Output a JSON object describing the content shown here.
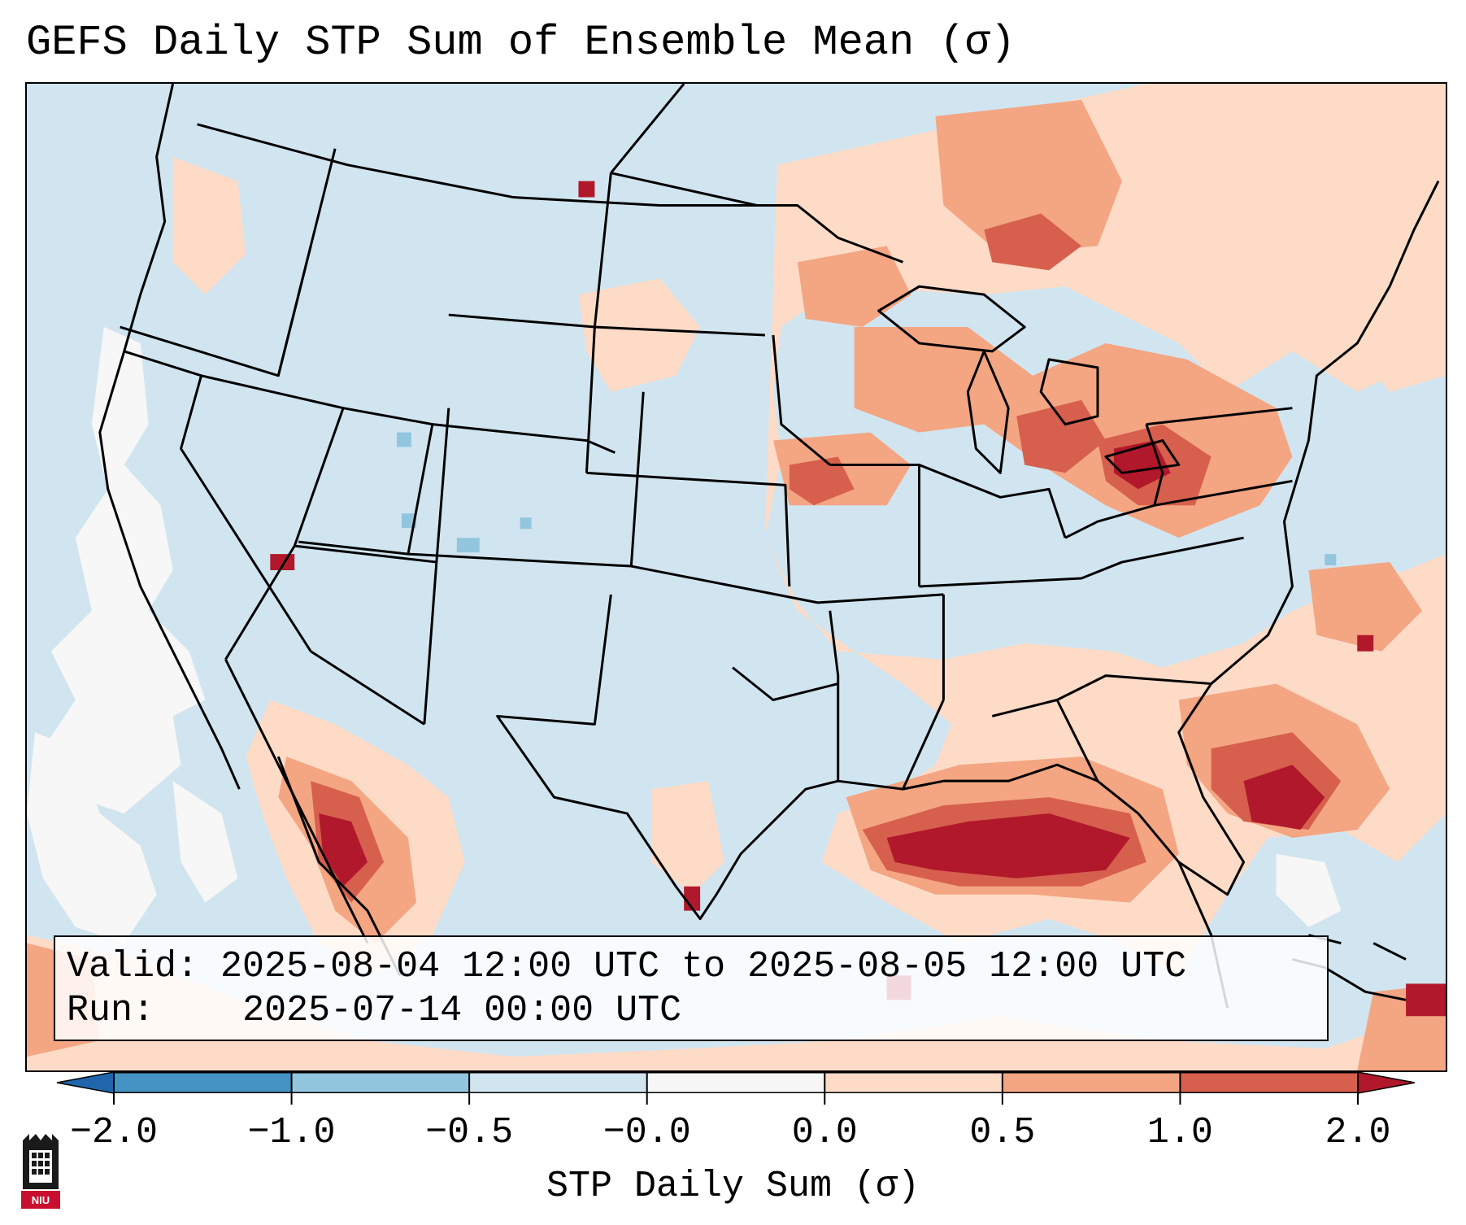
{
  "title": "GEFS Daily STP Sum of Ensemble Mean (σ)",
  "info": {
    "valid_label": "Valid:",
    "valid_value": "2025-08-04 12:00 UTC to 2025-08-05 12:00 UTC",
    "run_label": "Run:",
    "run_value": "2025-07-14 00:00 UTC"
  },
  "colorbar": {
    "label": "STP Daily Sum (σ)",
    "ticks": [
      "−2.0",
      "−1.0",
      "−0.5",
      "−0.0",
      "0.0",
      "0.5",
      "1.0",
      "2.0"
    ],
    "colors": [
      "#2166ac",
      "#4393c3",
      "#92c5de",
      "#d1e5f0",
      "#f7f7f7",
      "#fddbc7",
      "#f4a582",
      "#d6604d",
      "#b2182b"
    ],
    "bins": [
      {
        "min": -2.0,
        "max": -1.0,
        "color": "#4393c3"
      },
      {
        "min": -1.0,
        "max": -0.5,
        "color": "#92c5de"
      },
      {
        "min": -0.5,
        "max": -0.0,
        "color": "#d1e5f0"
      },
      {
        "min": -0.0,
        "max": 0.0,
        "color": "#f7f7f7"
      },
      {
        "min": 0.0,
        "max": 0.5,
        "color": "#fddbc7"
      },
      {
        "min": 0.5,
        "max": 1.0,
        "color": "#f4a582"
      },
      {
        "min": 1.0,
        "max": 2.0,
        "color": "#d6604d"
      }
    ],
    "extend_min_color": "#2166ac",
    "extend_max_color": "#b2182b"
  },
  "logo": {
    "text": "NIU",
    "icon": "niu-tower-logo-icon"
  }
}
